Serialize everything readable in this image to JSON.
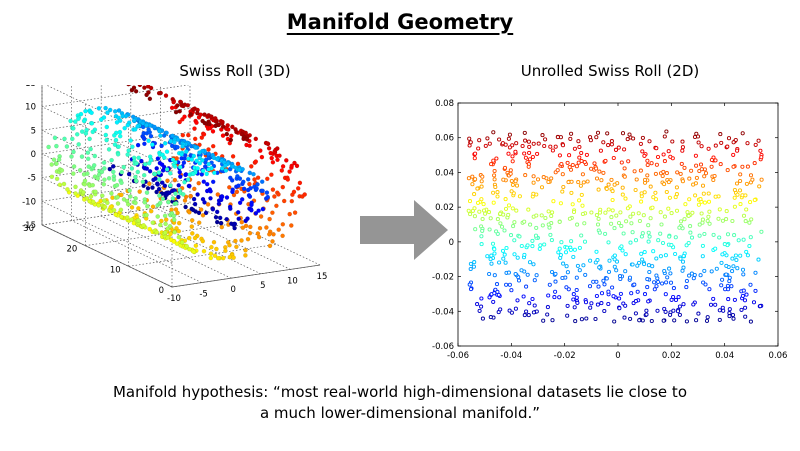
{
  "title": "Manifold Geometry",
  "caption": {
    "line1": "Manifold hypothesis: “most real-world high-dimensional datasets lie close to",
    "line2": "a much lower-dimensional manifold.”"
  },
  "chart_data": [
    {
      "type": "scatter3d",
      "title": "Swiss Roll (3D)",
      "z_ticks": [
        "15",
        "10",
        "5",
        "0",
        "-5",
        "-10",
        "-15"
      ],
      "y_ticks": [
        "30",
        "20",
        "10",
        "0"
      ],
      "x_ticks": [
        "-10",
        "-5",
        "0",
        "5",
        "10",
        "15"
      ],
      "zlim": [
        -15,
        15
      ],
      "ylim": [
        0,
        30
      ],
      "xlim": [
        -10,
        15
      ],
      "grid": true,
      "colormap": [
        "#00008f",
        "#0000ff",
        "#0080ff",
        "#00ffff",
        "#80ff80",
        "#ffff00",
        "#ff8000",
        "#ff0000",
        "#800000"
      ],
      "n_points": 1000
    },
    {
      "type": "scatter",
      "title": "Unrolled Swiss Roll (2D)",
      "x_ticks": [
        "-0.06",
        "-0.04",
        "-0.02",
        "0",
        "0.02",
        "0.04",
        "0.06"
      ],
      "y_ticks": [
        "0.08",
        "0.06",
        "0.04",
        "0.02",
        "0",
        "-0.02",
        "-0.04",
        "-0.06"
      ],
      "xlim": [
        -0.06,
        0.06
      ],
      "ylim": [
        -0.06,
        0.08
      ],
      "x_range_points": [
        -0.056,
        0.054
      ],
      "y_range_points": [
        -0.046,
        0.064
      ],
      "marker": "open-circle",
      "colormap": [
        "#00008f",
        "#0000ff",
        "#0080ff",
        "#00ffff",
        "#80ff80",
        "#ffff00",
        "#ff8000",
        "#ff0000",
        "#800000"
      ],
      "n_points": 900
    }
  ]
}
